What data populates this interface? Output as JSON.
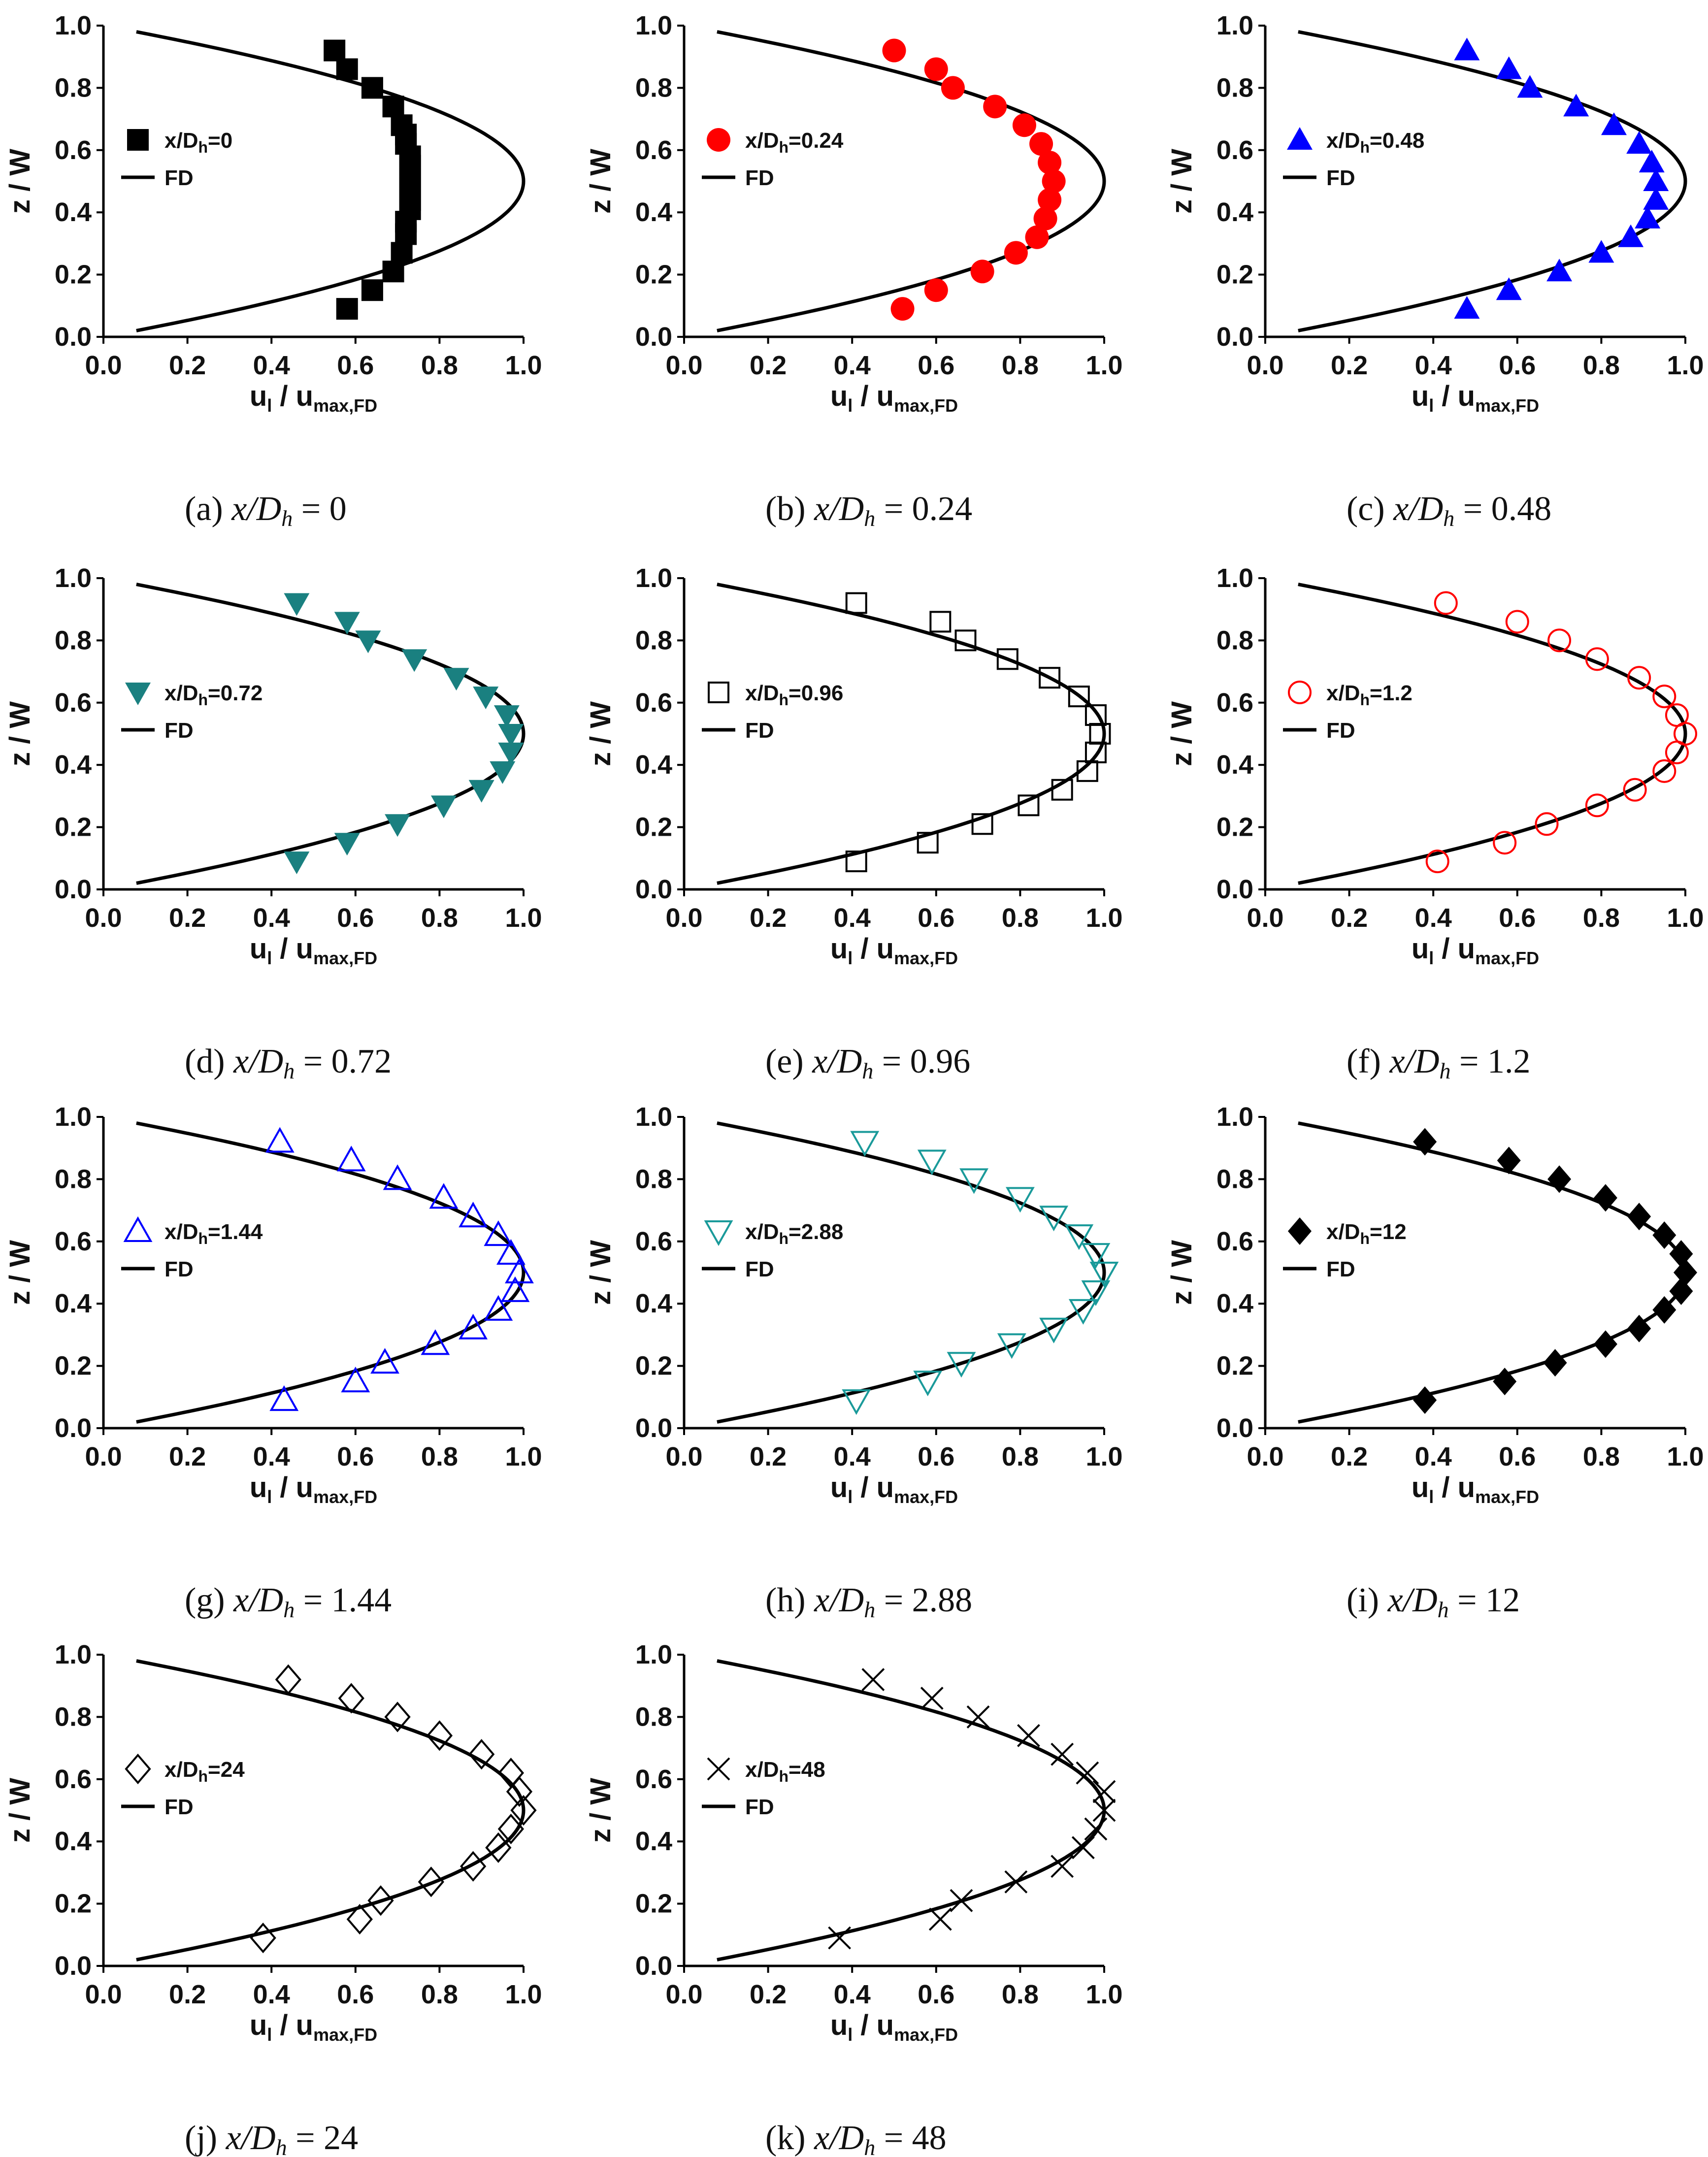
{
  "figure": {
    "x_tick_labels": [
      "0.0",
      "0.2",
      "0.4",
      "0.6",
      "0.8",
      "1.0"
    ],
    "y_tick_labels": [
      "0.0",
      "0.2",
      "0.4",
      "0.6",
      "0.8",
      "1.0"
    ]
  },
  "chart_data": [
    {
      "type": "scatter",
      "caption_id": "(a)",
      "caption_value": "0",
      "xlabel": "u_l / u_max,FD",
      "ylabel": "z / W",
      "xlim": [
        0,
        1.0
      ],
      "ylim": [
        0,
        1.0
      ],
      "legend": [
        {
          "label": "x/D_h=0",
          "marker": "square-filled",
          "color": "#000000"
        },
        {
          "label": "FD",
          "type": "line",
          "color": "#000000"
        }
      ],
      "fd_curve": "u = 1 - 4(z - 0.5)^2",
      "series": [
        {
          "name": "x/Dh=0",
          "marker": "square-filled",
          "color": "#000000",
          "x": [
            0.55,
            0.58,
            0.64,
            0.69,
            0.71,
            0.72,
            0.72,
            0.73,
            0.73,
            0.73,
            0.73,
            0.73,
            0.73,
            0.72,
            0.72,
            0.71,
            0.69,
            0.64,
            0.58
          ],
          "y": [
            0.92,
            0.86,
            0.8,
            0.74,
            0.68,
            0.65,
            0.62,
            0.58,
            0.55,
            0.51,
            0.48,
            0.44,
            0.41,
            0.37,
            0.33,
            0.27,
            0.21,
            0.15,
            0.09
          ]
        }
      ]
    },
    {
      "type": "scatter",
      "caption_id": "(b)",
      "caption_value": "0.24",
      "xlabel": "u_l / u_max,FD",
      "ylabel": "z / W",
      "xlim": [
        0,
        1.0
      ],
      "ylim": [
        0,
        1.0
      ],
      "legend": [
        {
          "label": "x/D_h=0.24",
          "marker": "circle-filled",
          "color": "#ff0000"
        },
        {
          "label": "FD",
          "type": "line",
          "color": "#000000"
        }
      ],
      "fd_curve": "u = 1 - 4(z - 0.5)^2",
      "series": [
        {
          "name": "x/Dh=0.24",
          "marker": "circle-filled",
          "color": "#ff0000",
          "x": [
            0.5,
            0.6,
            0.64,
            0.74,
            0.81,
            0.85,
            0.87,
            0.88,
            0.87,
            0.86,
            0.84,
            0.79,
            0.71,
            0.6,
            0.52
          ],
          "y": [
            0.92,
            0.86,
            0.8,
            0.74,
            0.68,
            0.62,
            0.56,
            0.5,
            0.44,
            0.38,
            0.32,
            0.27,
            0.21,
            0.15,
            0.09
          ]
        }
      ]
    },
    {
      "type": "scatter",
      "caption_id": "(c)",
      "caption_value": "0.48",
      "xlabel": "u_l / u_max,FD",
      "ylabel": "z / W",
      "xlim": [
        0,
        1.0
      ],
      "ylim": [
        0,
        1.0
      ],
      "legend": [
        {
          "label": "x/D_h=0.48",
          "marker": "triangle-up-filled",
          "color": "#0000ff"
        },
        {
          "label": "FD",
          "type": "line",
          "color": "#000000"
        }
      ],
      "fd_curve": "u = 1 - 4(z - 0.5)^2",
      "series": [
        {
          "name": "x/Dh=0.48",
          "marker": "triangle-up-filled",
          "color": "#0000ff",
          "x": [
            0.48,
            0.58,
            0.63,
            0.74,
            0.83,
            0.89,
            0.92,
            0.93,
            0.93,
            0.91,
            0.87,
            0.8,
            0.7,
            0.58,
            0.48
          ],
          "y": [
            0.92,
            0.86,
            0.8,
            0.74,
            0.68,
            0.62,
            0.56,
            0.5,
            0.44,
            0.38,
            0.32,
            0.27,
            0.21,
            0.15,
            0.09
          ]
        }
      ]
    },
    {
      "type": "scatter",
      "caption_id": "(d)",
      "caption_value": "0.72",
      "xlabel": "u_l / u_max,FD",
      "ylabel": "z / W",
      "xlim": [
        0,
        1.0
      ],
      "ylim": [
        0,
        1.0
      ],
      "legend": [
        {
          "label": "x/D_h=0.72",
          "marker": "triangle-down-filled",
          "color": "#1a8080"
        },
        {
          "label": "FD",
          "type": "line",
          "color": "#000000"
        }
      ],
      "fd_curve": "u = 1 - 4(z - 0.5)^2",
      "series": [
        {
          "name": "x/Dh=0.72",
          "marker": "triangle-down-filled",
          "color": "#1a8080",
          "x": [
            0.46,
            0.58,
            0.63,
            0.74,
            0.84,
            0.91,
            0.96,
            0.97,
            0.97,
            0.95,
            0.9,
            0.81,
            0.7,
            0.58,
            0.46
          ],
          "y": [
            0.92,
            0.86,
            0.8,
            0.74,
            0.68,
            0.62,
            0.56,
            0.5,
            0.44,
            0.38,
            0.32,
            0.27,
            0.21,
            0.15,
            0.09
          ]
        }
      ]
    },
    {
      "type": "scatter",
      "caption_id": "(e)",
      "caption_value": "0.96",
      "xlabel": "u_l / u_max,FD",
      "ylabel": "z / W",
      "xlim": [
        0,
        1.0
      ],
      "ylim": [
        0,
        1.0
      ],
      "legend": [
        {
          "label": "x/D_h=0.96",
          "marker": "square-open",
          "color": "#000000"
        },
        {
          "label": "FD",
          "type": "line",
          "color": "#000000"
        }
      ],
      "fd_curve": "u = 1 - 4(z - 0.5)^2",
      "series": [
        {
          "name": "x/Dh=0.96",
          "marker": "square-open",
          "color": "#000000",
          "x": [
            0.41,
            0.61,
            0.67,
            0.77,
            0.87,
            0.94,
            0.98,
            0.99,
            0.98,
            0.96,
            0.9,
            0.82,
            0.71,
            0.58,
            0.41
          ],
          "y": [
            0.92,
            0.86,
            0.8,
            0.74,
            0.68,
            0.62,
            0.56,
            0.5,
            0.44,
            0.38,
            0.32,
            0.27,
            0.21,
            0.15,
            0.09
          ]
        }
      ]
    },
    {
      "type": "scatter",
      "caption_id": "(f)",
      "caption_value": "1.2",
      "xlabel": "u_l / u_max,FD",
      "ylabel": "z / W",
      "xlim": [
        0,
        1.0
      ],
      "ylim": [
        0,
        1.0
      ],
      "legend": [
        {
          "label": "x/D_h=1.2",
          "marker": "circle-open",
          "color": "#ff0000"
        },
        {
          "label": "FD",
          "type": "line",
          "color": "#000000"
        }
      ],
      "fd_curve": "u = 1 - 4(z - 0.5)^2",
      "series": [
        {
          "name": "x/Dh=1.2",
          "marker": "circle-open",
          "color": "#ff0000",
          "x": [
            0.43,
            0.6,
            0.7,
            0.79,
            0.89,
            0.95,
            0.98,
            1.0,
            0.98,
            0.95,
            0.88,
            0.79,
            0.67,
            0.57,
            0.41
          ],
          "y": [
            0.92,
            0.86,
            0.8,
            0.74,
            0.68,
            0.62,
            0.56,
            0.5,
            0.44,
            0.38,
            0.32,
            0.27,
            0.21,
            0.15,
            0.09
          ]
        }
      ]
    },
    {
      "type": "scatter",
      "caption_id": "(g)",
      "caption_value": "1.44",
      "xlabel": "u_l / u_max,FD",
      "ylabel": "z / W",
      "xlim": [
        0,
        1.0
      ],
      "ylim": [
        0,
        1.0
      ],
      "legend": [
        {
          "label": "x/D_h=1.44",
          "marker": "triangle-up-open",
          "color": "#0000ff"
        },
        {
          "label": "FD",
          "type": "line",
          "color": "#000000"
        }
      ],
      "fd_curve": "u = 1 - 4(z - 0.5)^2",
      "series": [
        {
          "name": "x/Dh=1.44",
          "marker": "triangle-up-open",
          "color": "#0000ff",
          "x": [
            0.42,
            0.59,
            0.7,
            0.81,
            0.88,
            0.94,
            0.97,
            0.99,
            0.98,
            0.94,
            0.88,
            0.79,
            0.67,
            0.6,
            0.43
          ],
          "y": [
            0.92,
            0.86,
            0.8,
            0.74,
            0.68,
            0.62,
            0.56,
            0.5,
            0.44,
            0.38,
            0.32,
            0.27,
            0.21,
            0.15,
            0.09
          ]
        }
      ]
    },
    {
      "type": "scatter",
      "caption_id": "(h)",
      "caption_value": "2.88",
      "xlabel": "u_l / u_max,FD",
      "ylabel": "z / W",
      "xlim": [
        0,
        1.0
      ],
      "ylim": [
        0,
        1.0
      ],
      "legend": [
        {
          "label": "x/D_h=2.88",
          "marker": "triangle-down-open",
          "color": "#1a9a9a"
        },
        {
          "label": "FD",
          "type": "line",
          "color": "#000000"
        }
      ],
      "fd_curve": "u = 1 - 4(z - 0.5)^2",
      "series": [
        {
          "name": "x/Dh=2.88",
          "marker": "triangle-down-open",
          "color": "#1a9a9a",
          "x": [
            0.43,
            0.59,
            0.69,
            0.8,
            0.88,
            0.94,
            0.98,
            1.0,
            0.98,
            0.95,
            0.88,
            0.78,
            0.66,
            0.58,
            0.41
          ],
          "y": [
            0.92,
            0.86,
            0.8,
            0.74,
            0.68,
            0.62,
            0.56,
            0.5,
            0.44,
            0.38,
            0.32,
            0.27,
            0.21,
            0.15,
            0.09
          ]
        }
      ]
    },
    {
      "type": "scatter",
      "caption_id": "(i)",
      "caption_value": "12",
      "xlabel": "u_l / u_max,FD",
      "ylabel": "z / W",
      "xlim": [
        0,
        1.0
      ],
      "ylim": [
        0,
        1.0
      ],
      "legend": [
        {
          "label": "x/D_h=12",
          "marker": "diamond-filled",
          "color": "#000000"
        },
        {
          "label": "FD",
          "type": "line",
          "color": "#000000"
        }
      ],
      "fd_curve": "u = 1 - 4(z - 0.5)^2",
      "series": [
        {
          "name": "x/Dh=12",
          "marker": "diamond-filled",
          "color": "#000000",
          "x": [
            0.38,
            0.58,
            0.7,
            0.81,
            0.89,
            0.95,
            0.99,
            1.0,
            0.99,
            0.95,
            0.89,
            0.81,
            0.69,
            0.57,
            0.38
          ],
          "y": [
            0.92,
            0.86,
            0.8,
            0.74,
            0.68,
            0.62,
            0.56,
            0.5,
            0.44,
            0.38,
            0.32,
            0.27,
            0.21,
            0.15,
            0.09
          ]
        }
      ]
    },
    {
      "type": "scatter",
      "caption_id": "(j)",
      "caption_value": "24",
      "xlabel": "u_l / u_max,FD",
      "ylabel": "z / W",
      "xlim": [
        0,
        1.0
      ],
      "ylim": [
        0,
        1.0
      ],
      "legend": [
        {
          "label": "x/D_h=24",
          "marker": "diamond-open",
          "color": "#000000"
        },
        {
          "label": "FD",
          "type": "line",
          "color": "#000000"
        }
      ],
      "fd_curve": "u = 1 - 4(z - 0.5)^2",
      "series": [
        {
          "name": "x/Dh=24",
          "marker": "diamond-open",
          "color": "#000000",
          "x": [
            0.44,
            0.59,
            0.7,
            0.8,
            0.9,
            0.97,
            0.99,
            1.0,
            0.97,
            0.94,
            0.88,
            0.78,
            0.66,
            0.61,
            0.38
          ],
          "y": [
            0.92,
            0.86,
            0.8,
            0.74,
            0.68,
            0.62,
            0.56,
            0.5,
            0.44,
            0.38,
            0.32,
            0.27,
            0.21,
            0.15,
            0.09
          ]
        }
      ]
    },
    {
      "type": "scatter",
      "caption_id": "(k)",
      "caption_value": "48",
      "xlabel": "u_l / u_max,FD",
      "ylabel": "z / W",
      "xlim": [
        0,
        1.0
      ],
      "ylim": [
        0,
        1.0
      ],
      "legend": [
        {
          "label": "x/D_h=48",
          "marker": "cross",
          "color": "#000000"
        },
        {
          "label": "FD",
          "type": "line",
          "color": "#000000"
        }
      ],
      "fd_curve": "u = 1 - 4(z - 0.5)^2",
      "series": [
        {
          "name": "x/Dh=48",
          "marker": "cross",
          "color": "#000000",
          "x": [
            0.45,
            0.59,
            0.7,
            0.82,
            0.9,
            0.96,
            1.0,
            1.0,
            0.98,
            0.95,
            0.9,
            0.79,
            0.66,
            0.61,
            0.37
          ],
          "y": [
            0.92,
            0.86,
            0.8,
            0.74,
            0.68,
            0.62,
            0.56,
            0.5,
            0.44,
            0.38,
            0.32,
            0.27,
            0.21,
            0.15,
            0.09
          ]
        }
      ]
    }
  ]
}
